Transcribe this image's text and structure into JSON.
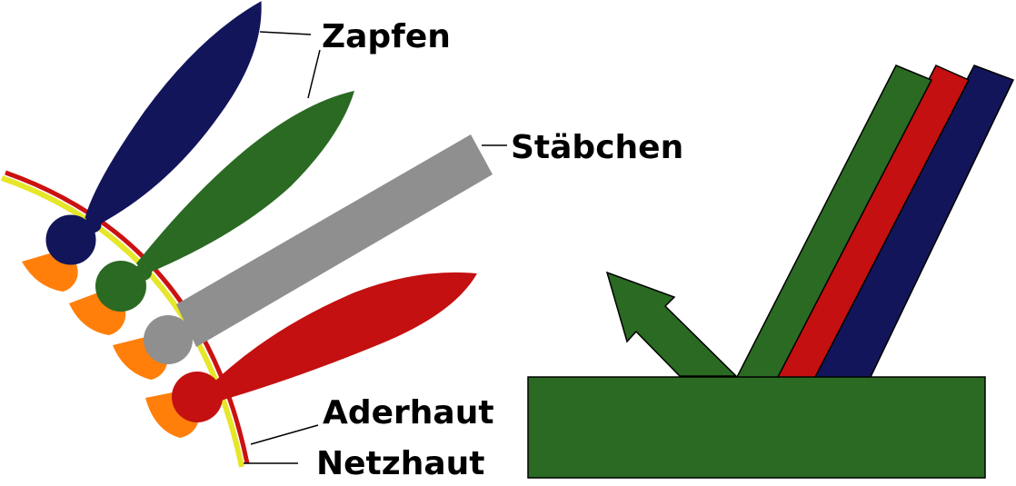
{
  "labels": {
    "zapfen": "Zapfen",
    "staebchen": "Stäbchen",
    "aderhaut": "Aderhaut",
    "netzhaut": "Netzhaut"
  },
  "colors": {
    "blue_cone": "#13155a",
    "green_cone": "#2a6a22",
    "rod": "#8f8f8f",
    "red_cone": "#c41010",
    "pigment": "#ff7f0a",
    "aderhaut_layer": "#cc1111",
    "netzhaut_layer": "#e6e62a",
    "surface": "#2a6a22",
    "reflected_arrow": "#2a6a22"
  },
  "light_beams": [
    "green",
    "red",
    "blue"
  ]
}
